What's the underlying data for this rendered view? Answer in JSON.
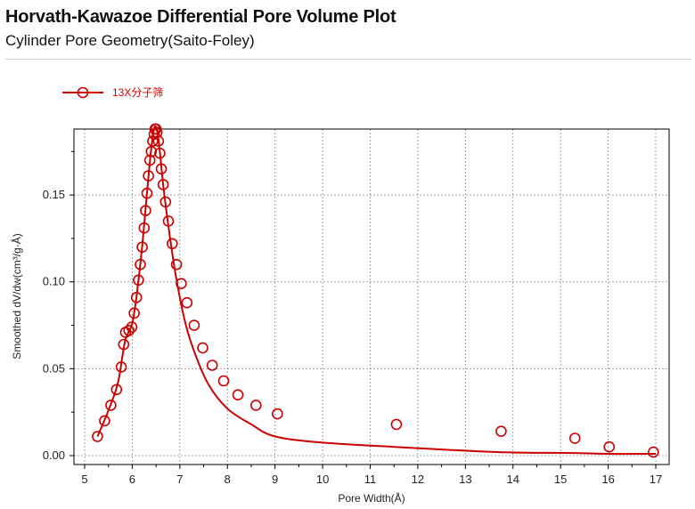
{
  "header": {
    "title": "Horvath-Kawazoe Differential Pore Volume Plot",
    "subtitle": "Cylinder Pore Geometry(Saito-Foley)"
  },
  "chart_data": {
    "type": "line",
    "xlabel": "Pore Width(Å)",
    "ylabel": "Smoothed dV/dw(cm³/g·Å)",
    "xlim": [
      5,
      17
    ],
    "ylim": [
      0,
      0.19
    ],
    "xticks": [
      5,
      6,
      7,
      8,
      9,
      10,
      11,
      12,
      13,
      14,
      15,
      16,
      17
    ],
    "xtick_labels": [
      "5",
      "6",
      "7",
      "8",
      "9",
      "10",
      "11",
      "12",
      "13",
      "14",
      "15",
      "16",
      "17"
    ],
    "yticks": [
      0,
      0.05,
      0.1,
      0.15
    ],
    "ytick_labels": [
      "0.00",
      "0.05",
      "0.10",
      "0.15"
    ],
    "grid": true,
    "legend_position": "top-left",
    "color": "#cc0000",
    "series": [
      {
        "name": "13X分子筛",
        "x": [
          5.27,
          5.42,
          5.55,
          5.67,
          5.77,
          5.82,
          5.86,
          5.93,
          5.99,
          6.04,
          6.09,
          6.13,
          6.17,
          6.21,
          6.25,
          6.28,
          6.31,
          6.34,
          6.37,
          6.4,
          6.43,
          6.46,
          6.48,
          6.5,
          6.52,
          6.55,
          6.58,
          6.61,
          6.65,
          6.7,
          6.76,
          6.84,
          6.93,
          7.03,
          7.15,
          7.3,
          7.48,
          7.68,
          7.92,
          8.22,
          8.6,
          9.05,
          11.55,
          13.75,
          15.3,
          16.02,
          16.95
        ],
        "y": [
          0.011,
          0.02,
          0.029,
          0.038,
          0.051,
          0.064,
          0.071,
          0.072,
          0.074,
          0.082,
          0.091,
          0.101,
          0.11,
          0.12,
          0.131,
          0.141,
          0.151,
          0.161,
          0.17,
          0.175,
          0.181,
          0.185,
          0.188,
          0.188,
          0.186,
          0.181,
          0.174,
          0.165,
          0.156,
          0.146,
          0.135,
          0.122,
          0.11,
          0.099,
          0.088,
          0.075,
          0.062,
          0.052,
          0.043,
          0.035,
          0.029,
          0.024,
          0.018,
          0.014,
          0.01,
          0.005,
          0.002
        ],
        "smooth_x": [
          5.27,
          5.5,
          5.7,
          5.85,
          6.0,
          6.1,
          6.2,
          6.3,
          6.38,
          6.45,
          6.5,
          6.56,
          6.65,
          6.75,
          6.9,
          7.1,
          7.3,
          7.6,
          8.0,
          8.5,
          9.0,
          10.0,
          11.5,
          13.7,
          15.3,
          16.0,
          17.0
        ],
        "smooth_y": [
          0.011,
          0.026,
          0.042,
          0.066,
          0.076,
          0.094,
          0.118,
          0.148,
          0.172,
          0.187,
          0.189,
          0.18,
          0.156,
          0.134,
          0.106,
          0.078,
          0.06,
          0.041,
          0.027,
          0.018,
          0.011,
          0.0075,
          0.005,
          0.002,
          0.0015,
          0.001,
          0.001
        ]
      }
    ]
  }
}
